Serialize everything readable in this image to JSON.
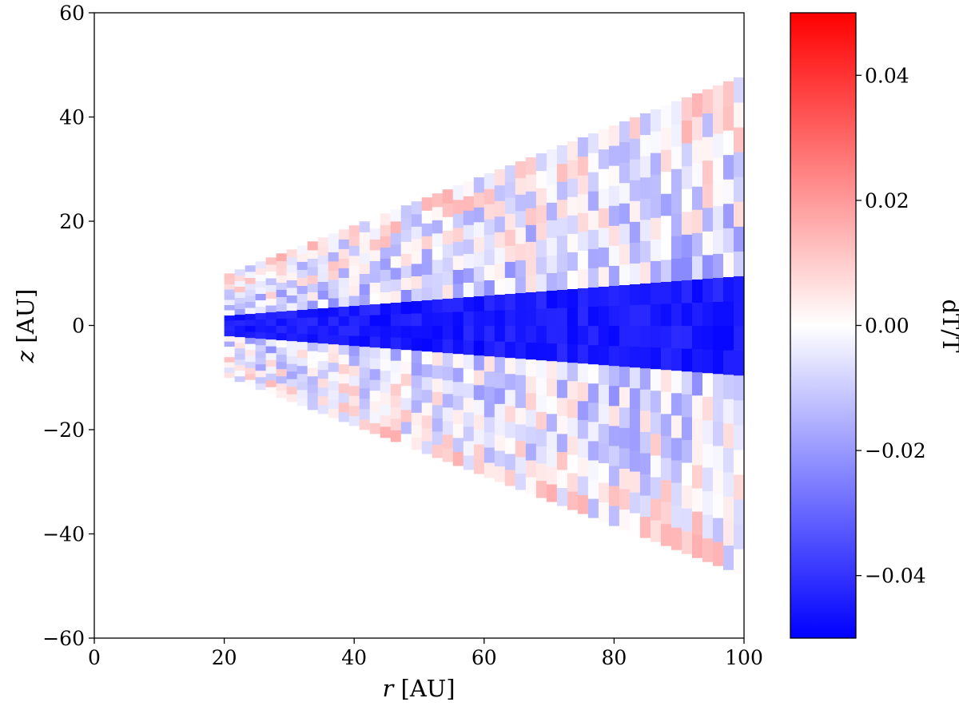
{
  "chart_data": {
    "type": "heatmap",
    "xlabel_var": "r",
    "xlabel_unit": "[AU]",
    "ylabel_var": "z",
    "ylabel_unit": "[AU]",
    "colorbar_label": "dT/T",
    "xlim": [
      0,
      100
    ],
    "ylim": [
      -60,
      60
    ],
    "xticks": [
      0,
      20,
      40,
      60,
      80,
      100
    ],
    "yticks": [
      -60,
      -40,
      -20,
      0,
      20,
      40,
      60
    ],
    "x_tick_labels": [
      "0",
      "20",
      "40",
      "60",
      "80",
      "100"
    ],
    "y_tick_labels": [
      "−60",
      "−40",
      "−20",
      "0",
      "20",
      "40",
      "60"
    ],
    "color_range": [
      -0.05,
      0.05
    ],
    "colorbar_ticks": [
      -0.04,
      -0.02,
      0.0,
      0.02,
      0.04
    ],
    "colorbar_tick_labels": [
      "−0.04",
      "−0.02",
      "0.00",
      "0.02",
      "0.04"
    ],
    "colormap": "bwr",
    "colors": {
      "low": "#0000ff",
      "mid": "#ffffff",
      "high": "#ff0000"
    },
    "grid": false,
    "domain": {
      "r_min": 20,
      "r_max": 100,
      "opening_slope": 0.48,
      "midplane_band_slope": 0.1,
      "midplane_value": -0.045,
      "atmosphere_value_range": [
        -0.03,
        0.03
      ],
      "radial_cells": 50,
      "vertical_cells": 20
    }
  }
}
